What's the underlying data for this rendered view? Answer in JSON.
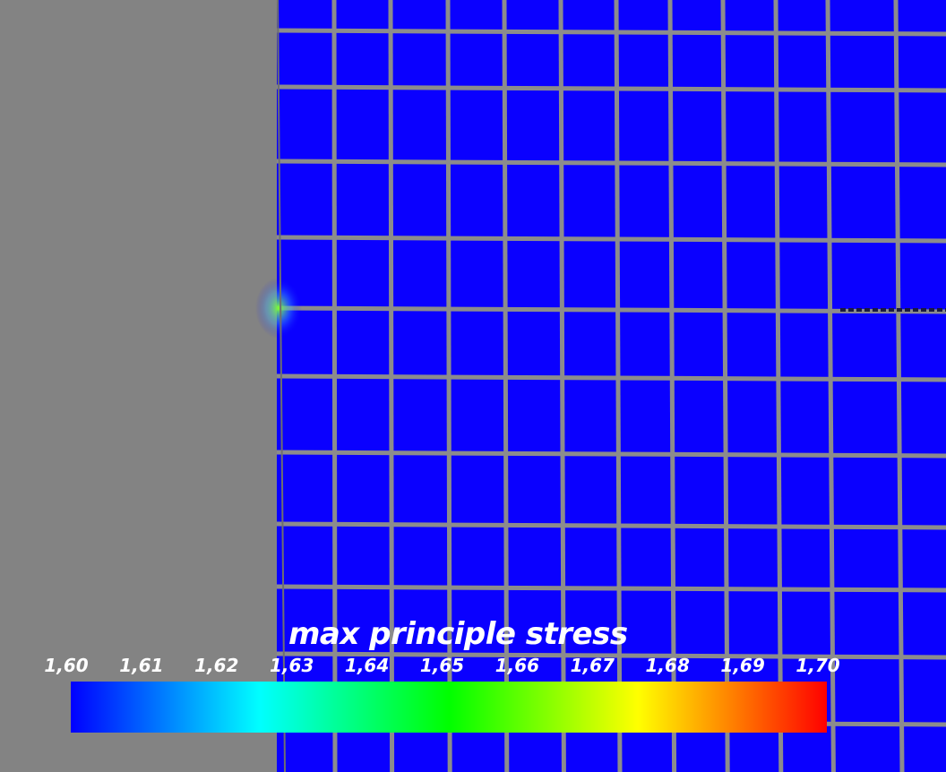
{
  "viewport": {
    "background_color": "#838383",
    "mesh_element_color": "#0a00ff",
    "mesh_line_color": "#8c8c8c",
    "hotspot_color": "#7dff2a"
  },
  "colorbar": {
    "title": "max principle stress",
    "min": 1.6,
    "max": 1.7,
    "tick_labels": [
      "1,60",
      "1,61",
      "1,62",
      "1,63",
      "1,64",
      "1,65",
      "1,66",
      "1,67",
      "1,68",
      "1,69",
      "1,70"
    ],
    "colormap": [
      "#0000ff",
      "#00ffff",
      "#00ff00",
      "#ffff00",
      "#ff0000"
    ]
  }
}
